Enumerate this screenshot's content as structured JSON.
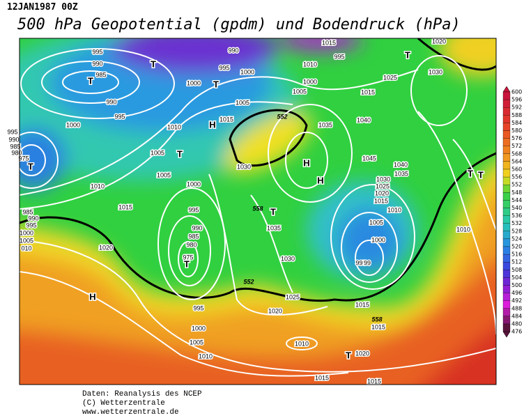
{
  "header": {
    "date": "12JAN1987 00Z",
    "title": "500 hPa Geopotential (gpdm) und Bodendruck (hPa)"
  },
  "map": {
    "labels": [
      "995",
      "990",
      "985",
      "T",
      "990",
      "995",
      "1000",
      "995",
      "990",
      "985",
      "980",
      "975",
      "T",
      "T",
      "990",
      "995",
      "1000",
      "T",
      "1000",
      "1005",
      "1015",
      "H",
      "1010",
      "1005",
      "T",
      "1000",
      "1005",
      "1010",
      "1015",
      "995",
      "990",
      "985",
      "980",
      "975",
      "T",
      "985",
      "990",
      "995",
      "1000",
      "1005",
      "010",
      "1020",
      "H",
      "995",
      "1000",
      "1005",
      "1010",
      "1015",
      "995",
      "1000",
      "1005",
      "1010",
      "T",
      "1025",
      "1030",
      "1015",
      "1035",
      "1040",
      "H",
      "H",
      "1045",
      "1040",
      "1035",
      "1030",
      "1025",
      "1020",
      "1015",
      "1010",
      "1005",
      "1000",
      "995",
      "99",
      "T",
      "1035",
      "1030",
      "1025",
      "1020",
      "1015",
      "1015",
      "1010",
      "1020",
      "T",
      "1015",
      "1015",
      "1020",
      "T",
      "T",
      "1010",
      "1030",
      "552",
      "552",
      "558",
      "558"
    ]
  },
  "colorbar": {
    "labels": [
      600,
      596,
      592,
      588,
      584,
      580,
      576,
      572,
      568,
      564,
      560,
      556,
      552,
      548,
      544,
      540,
      536,
      532,
      528,
      524,
      520,
      516,
      512,
      508,
      504,
      500,
      496,
      492,
      488,
      484,
      480,
      476
    ]
  },
  "footer": {
    "lines": [
      "Daten: Reanalysis des NCEP",
      "(C) Wetterzentrale",
      "www.wetterzentrale.de"
    ]
  }
}
